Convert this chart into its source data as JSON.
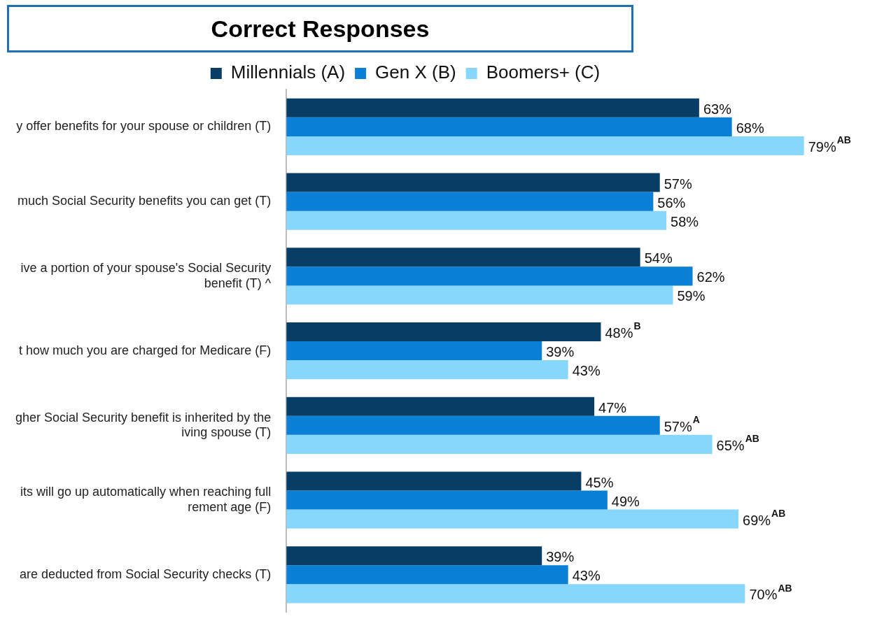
{
  "chart_data": {
    "type": "bar",
    "orientation": "horizontal",
    "title": "Correct Responses",
    "categories": [
      "y offer benefits for your spouse or children (T)",
      "much Social Security benefits you can get (T)",
      "ive a portion of your spouse's Social Security\nbenefit (T) ^",
      "t how much you are charged for Medicare (F)",
      "gher Social Security benefit is inherited by the\niving spouse (T)",
      "its will go up automatically when reaching full\nrement age (F)",
      "are deducted from Social Security checks (T)"
    ],
    "series": [
      {
        "name": "Millennials (A)",
        "color": "#083e66",
        "values": [
          63,
          57,
          54,
          48,
          47,
          45,
          39
        ],
        "value_labels": [
          "63%",
          "57%",
          "54%",
          "48%$^{B}$",
          "47%",
          "45%",
          "39%"
        ]
      },
      {
        "name": "Gen X (B)",
        "color": "#0a7fd6",
        "values": [
          68,
          56,
          62,
          39,
          57,
          49,
          43
        ],
        "value_labels": [
          "68%",
          "56%",
          "62%",
          "39%",
          "57%$^{A}$",
          "49%",
          "43%"
        ]
      },
      {
        "name": "Boomers+ (C)",
        "color": "#87d7fc",
        "values": [
          79,
          58,
          59,
          43,
          65,
          69,
          70
        ],
        "value_labels": [
          "79%$^{AB}$",
          "58%",
          "59%",
          "43%",
          "65%$^{AB}$",
          "69%$^{AB}$",
          "70%$^{AB}$"
        ]
      }
    ],
    "legend": "top",
    "grid": false
  }
}
